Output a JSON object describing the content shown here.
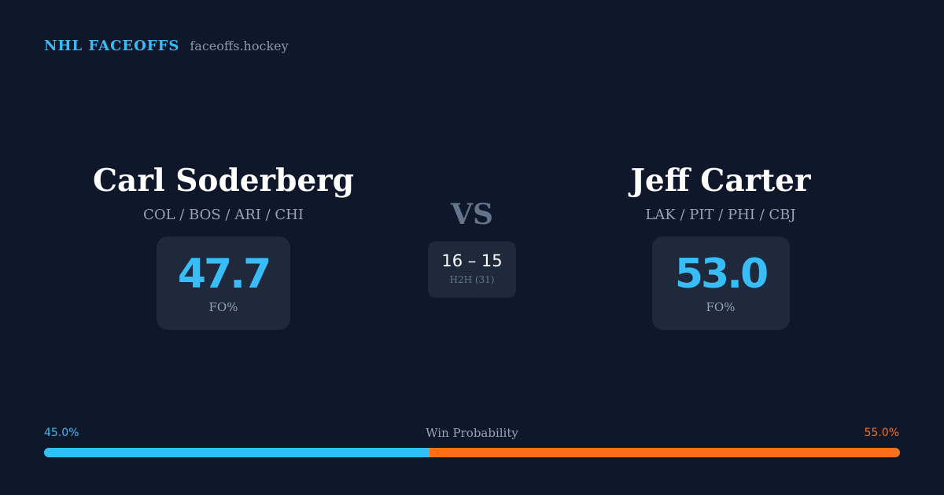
{
  "brand": {
    "name": "NHL FACEOFFS",
    "domain": "faceoffs.hockey"
  },
  "player_left": {
    "name": "Carl Soderberg",
    "teams": "COL / BOS / ARI / CHI",
    "fo_pct": "47.7",
    "fo_label": "FO%"
  },
  "player_right": {
    "name": "Jeff Carter",
    "teams": "LAK / PIT / PHI / CBJ",
    "fo_pct": "53.0",
    "fo_label": "FO%"
  },
  "matchup": {
    "vs": "VS",
    "h2h_score": "16 – 15",
    "h2h_label": "H2H (31)"
  },
  "win_probability": {
    "title": "Win Probability",
    "left_label": "45.0%",
    "right_label": "55.0%",
    "left_value": 45.0,
    "right_value": 55.0
  },
  "colors": {
    "background": "#0f172a",
    "card": "#1e293b",
    "accent_blue": "#38bdf8",
    "accent_orange": "#f97316"
  }
}
